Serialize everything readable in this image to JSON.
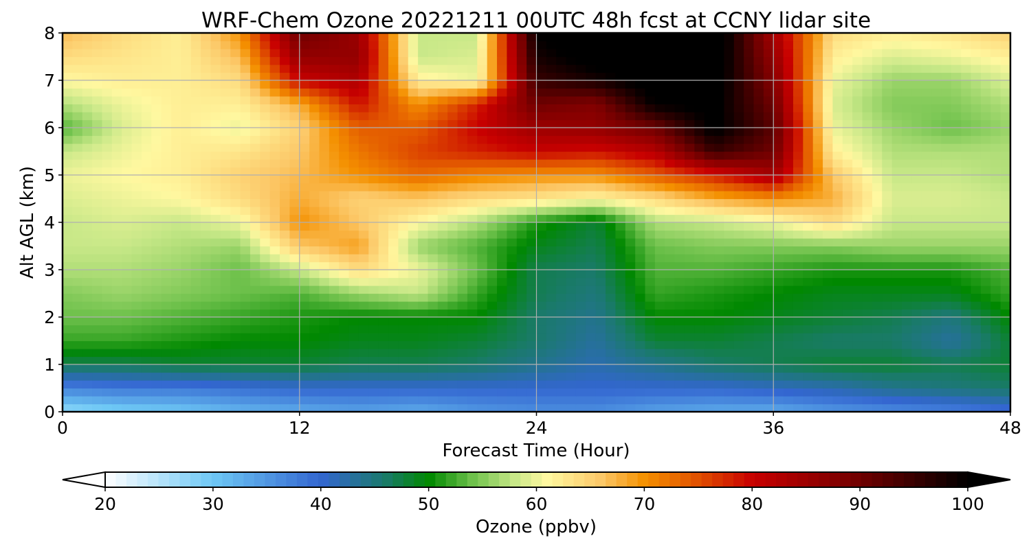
{
  "chart_data": {
    "type": "heatmap",
    "title": "WRF-Chem Ozone  20221211 00UTC 48h fcst at CCNY lidar site",
    "xlabel": "Forecast Time (Hour)",
    "ylabel": "Alt AGL (km)",
    "xlim": [
      0,
      48
    ],
    "ylim": [
      0,
      8
    ],
    "x_ticks": [
      0,
      12,
      24,
      36,
      48
    ],
    "y_ticks": [
      0,
      1,
      2,
      3,
      4,
      5,
      6,
      7,
      8
    ],
    "grid": true,
    "x": [
      0,
      3,
      6,
      9,
      12,
      15,
      18,
      21,
      24,
      27,
      30,
      33,
      36,
      39,
      42,
      45,
      48
    ],
    "y": [
      0,
      0.5,
      1,
      1.5,
      2,
      2.5,
      3,
      3.5,
      4,
      4.5,
      5,
      5.5,
      6,
      6.5,
      7,
      7.5,
      8
    ],
    "values": [
      [
        27,
        29,
        30,
        32,
        33,
        34,
        33,
        35,
        36,
        36,
        34,
        33,
        33,
        35,
        36,
        37,
        39
      ],
      [
        37,
        38,
        38,
        39,
        40,
        40,
        40,
        40,
        40,
        40,
        40,
        40,
        41,
        42,
        44,
        45,
        46
      ],
      [
        47,
        47,
        48,
        48,
        48,
        47,
        47,
        46,
        44,
        42,
        44,
        46,
        47,
        48,
        48,
        47,
        48
      ],
      [
        52,
        52,
        51,
        50,
        50,
        49,
        49,
        48,
        46,
        43,
        48,
        48,
        47,
        46,
        46,
        43,
        48
      ],
      [
        54,
        54,
        53,
        52,
        51,
        50,
        50,
        50,
        46,
        44,
        50,
        50,
        49,
        48,
        47,
        45,
        50
      ],
      [
        55,
        56,
        55,
        54,
        53,
        56,
        58,
        52,
        47,
        45,
        52,
        51,
        50,
        49,
        49,
        49,
        52
      ],
      [
        57,
        57,
        56,
        54,
        58,
        64,
        60,
        54,
        47,
        46,
        53,
        53,
        52,
        51,
        51,
        51,
        53
      ],
      [
        58,
        58,
        57,
        56,
        66,
        69,
        56,
        53,
        49,
        47,
        54,
        55,
        55,
        55,
        56,
        56,
        56
      ],
      [
        58,
        59,
        58,
        60,
        70,
        66,
        61,
        57,
        51,
        48,
        57,
        58,
        60,
        64,
        58,
        58,
        58
      ],
      [
        59,
        60,
        61,
        64,
        68,
        65,
        66,
        64,
        63,
        61,
        64,
        68,
        70,
        68,
        59,
        59,
        58
      ],
      [
        60,
        61,
        62,
        65,
        67,
        70,
        73,
        71,
        70,
        70,
        74,
        78,
        84,
        66,
        58,
        58,
        57
      ],
      [
        58,
        60,
        62,
        63,
        66,
        72,
        76,
        78,
        80,
        79,
        82,
        95,
        90,
        62,
        57,
        57,
        57
      ],
      [
        53,
        59,
        62,
        60,
        65,
        74,
        74,
        80,
        85,
        86,
        90,
        101,
        92,
        60,
        56,
        54,
        56
      ],
      [
        57,
        60,
        62,
        62,
        68,
        79,
        70,
        78,
        90,
        88,
        100,
        101,
        90,
        59,
        55,
        55,
        57
      ],
      [
        61,
        62,
        62,
        64,
        80,
        83,
        62,
        60,
        95,
        98,
        102,
        102,
        88,
        60,
        56,
        56,
        59
      ],
      [
        64,
        63,
        62,
        67,
        86,
        86,
        58,
        59,
        98,
        102,
        103,
        103,
        86,
        62,
        59,
        60,
        62
      ],
      [
        67,
        64,
        62,
        70,
        90,
        85,
        58,
        58,
        100,
        103,
        104,
        104,
        84,
        64,
        62,
        63,
        65
      ]
    ],
    "colorbar": {
      "label": "Ozone  (ppbv)",
      "min": 20,
      "max": 100,
      "ticks": [
        20,
        30,
        40,
        50,
        60,
        70,
        80,
        90,
        100
      ],
      "extend": "both",
      "levels": 81,
      "color_stops": [
        {
          "value": 20,
          "color": "#ffffff"
        },
        {
          "value": 30,
          "color": "#6ec8f5"
        },
        {
          "value": 40,
          "color": "#3366d0"
        },
        {
          "value": 46,
          "color": "#1a7a6a"
        },
        {
          "value": 50,
          "color": "#008800"
        },
        {
          "value": 54,
          "color": "#6cc04a"
        },
        {
          "value": 58,
          "color": "#c8e888"
        },
        {
          "value": 61,
          "color": "#fff8a0"
        },
        {
          "value": 66,
          "color": "#fcc868"
        },
        {
          "value": 70,
          "color": "#f49000"
        },
        {
          "value": 75,
          "color": "#e05000"
        },
        {
          "value": 80,
          "color": "#c80000"
        },
        {
          "value": 90,
          "color": "#700000"
        },
        {
          "value": 100,
          "color": "#000000"
        }
      ]
    }
  }
}
